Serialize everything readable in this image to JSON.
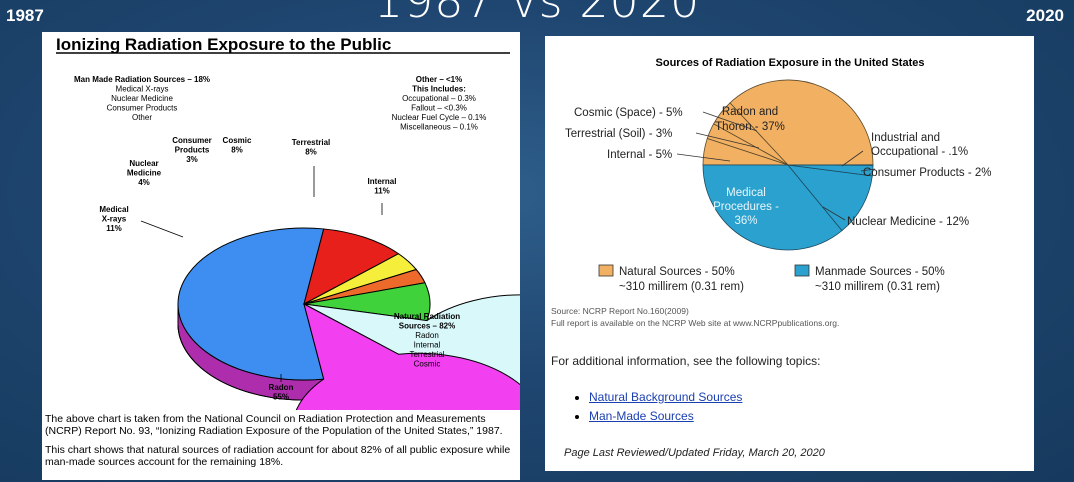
{
  "slide": {
    "title": "1987 vs 2020",
    "year_left": "1987",
    "year_right": "2020"
  },
  "left": {
    "caption_p1": "The above chart is taken from the National Council on Radiation Protection and Measurements (NCRP) Report No. 93, “Ionizing Radiation Exposure of the Population of the United States,” 1987.",
    "caption_p2": "This chart shows that natural sources of radiation account for about 82% of all public exposure while man-made sources account for the remaining 18%."
  },
  "right": {
    "source_line1": "Source: NCRP Report No.160(2009)",
    "source_line2": "Full report is available on the NCRP Web site at www.NCRPpublications.org.",
    "additional_info": "For additional information, see the following topics:",
    "links": [
      "Natural Background Sources",
      "Man-Made Sources"
    ],
    "last_reviewed": "Page Last Reviewed/Updated Friday, March 20, 2020"
  },
  "chart_data": [
    {
      "type": "pie",
      "title": "Ionizing Radiation Exposure to the Public",
      "categories": [
        "Radon",
        "Medical X-rays",
        "Nuclear Medicine",
        "Consumer Products",
        "Cosmic",
        "Terrestrial",
        "Internal"
      ],
      "values": [
        55,
        11,
        4,
        3,
        8,
        8,
        11
      ],
      "colors": [
        "#3d8ef0",
        "#e8201c",
        "#f5ee3a",
        "#ee6a2a",
        "#3fd23a",
        "#d8f8fa",
        "#f23ff0"
      ],
      "labels": [
        "Radon\n55%",
        "Medical\nX-rays\n11%",
        "Nuclear\nMedicine\n4%",
        "Consumer\nProducts\n3%",
        "Cosmic\n8%",
        "Terrestrial\n8%",
        "Internal\n11%"
      ],
      "annotations": {
        "man_made": [
          "Man Made Radiation Sources – 18%",
          "Medical X-rays",
          "Nuclear Medicine",
          "Consumer Products",
          "Other"
        ],
        "other": [
          "Other – <1%",
          "This Includes:",
          "Occupational – 0.3%",
          "Fallout – <0.3%",
          "Nuclear Fuel Cycle – 0.1%",
          "Miscellaneous – 0.1%"
        ],
        "natural": [
          "Natural Radiation",
          "Sources – 82%",
          "Radon",
          "Internal",
          "Terrestrial",
          "Cosmic"
        ]
      }
    },
    {
      "type": "pie",
      "title": "Sources of Radiation Exposure in the United States",
      "categories": [
        "Radon and Thoron",
        "Internal",
        "Terrestrial (Soil)",
        "Cosmic (Space)",
        "Medical Procedures",
        "Nuclear Medicine",
        "Consumer Products",
        "Industrial and Occupational"
      ],
      "values": [
        37,
        5,
        3,
        5,
        36,
        12,
        2,
        0.1
      ],
      "groups": [
        "natural",
        "natural",
        "natural",
        "natural",
        "manmade",
        "manmade",
        "manmade",
        "manmade"
      ],
      "labels": {
        "radon": [
          "Radon and",
          "Thoron - 37%"
        ],
        "medical": [
          "Medical",
          "Procedures -",
          "36%"
        ],
        "cosmic": "Cosmic (Space) - 5%",
        "terrestrial": "Terrestrial (Soil) - 3%",
        "internal": "Internal - 5%",
        "industrial": [
          "Industrial and",
          "Occupational - .1%"
        ],
        "consumer": "Consumer Products - 2%",
        "nuclear": "Nuclear Medicine - 12%"
      },
      "colors": {
        "natural": "#f2b063",
        "manmade": "#2aa1cf"
      },
      "legend": [
        {
          "name": "Natural Sources - 50%",
          "detail": "~310 millirem (0.31 rem)",
          "color": "#f2b063"
        },
        {
          "name": "Manmade Sources - 50%",
          "detail": "~310 millirem (0.31 rem)",
          "color": "#2aa1cf"
        }
      ]
    }
  ]
}
